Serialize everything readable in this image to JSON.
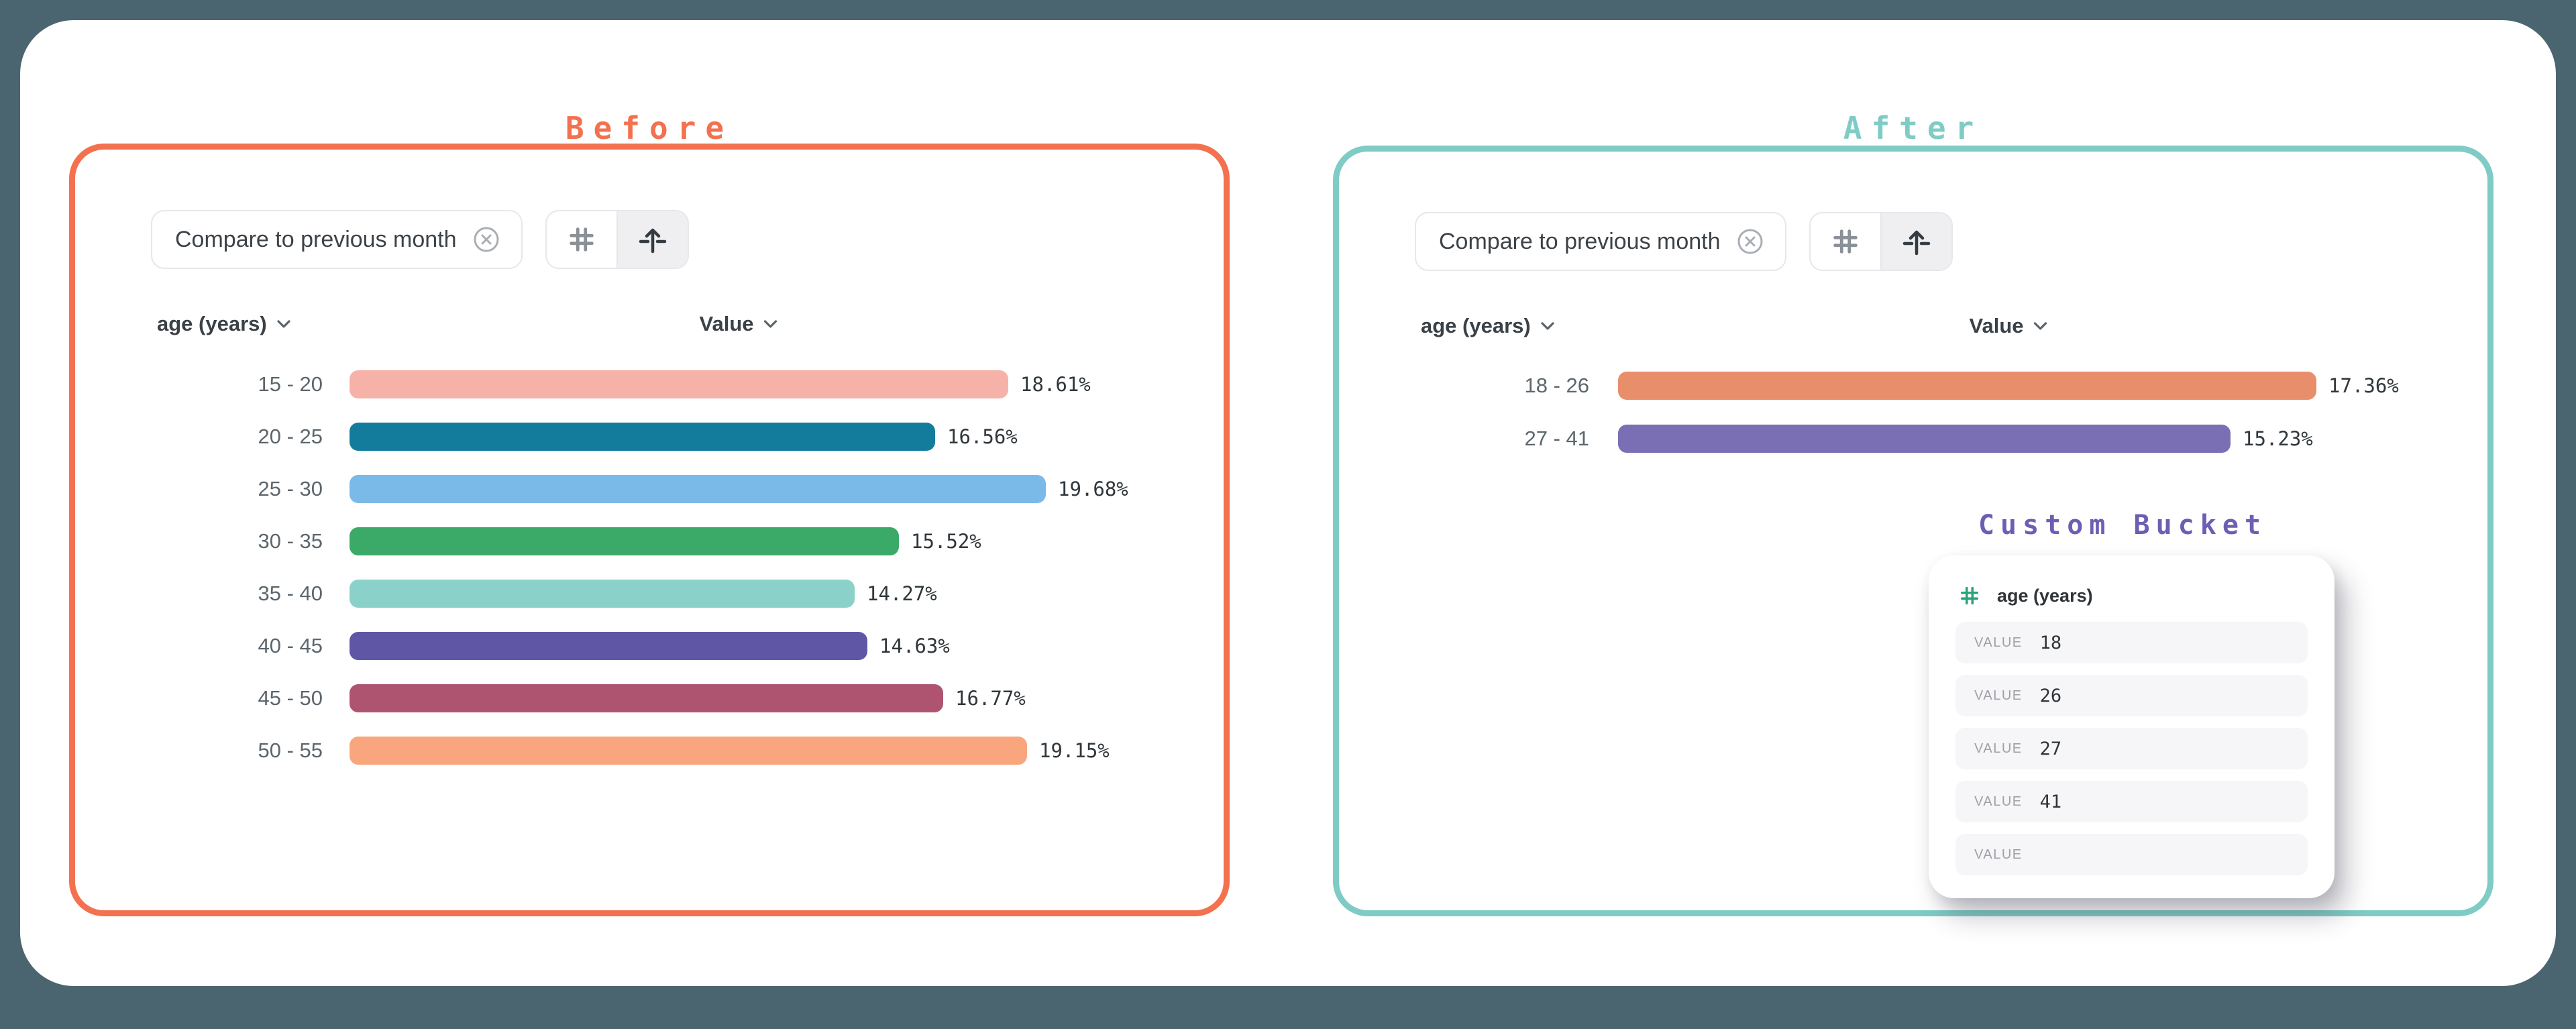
{
  "page": {
    "background_color": "#4A6570",
    "card_color": "#FFFFFF"
  },
  "panels": {
    "before": {
      "title": "Before",
      "accent_color": "#F3714F",
      "toolbar": {
        "filter_chip_label": "Compare to previous month",
        "remove_icon": "circled-x-icon",
        "segmented_icons": [
          "hash-icon",
          "bucket-arrow-icon"
        ],
        "segmented_selected": "bucket-arrow"
      },
      "columns": {
        "dimension_label": "age (years)",
        "value_label": "Value"
      }
    },
    "after": {
      "title": "After",
      "accent_color": "#7FCBC5",
      "toolbar": {
        "filter_chip_label": "Compare to previous month",
        "remove_icon": "circled-x-icon",
        "segmented_icons": [
          "hash-icon",
          "bucket-arrow-icon"
        ],
        "segmented_selected": "bucket-arrow"
      },
      "columns": {
        "dimension_label": "age (years)",
        "value_label": "Value"
      },
      "custom_bucket": {
        "title": "Custom Bucket",
        "title_color": "#6C5FB3",
        "field_icon": "hash-icon",
        "field_icon_color": "#2AA379",
        "field_label": "age (years)",
        "row_label": "VALUE",
        "values": [
          "18",
          "26",
          "27",
          "41",
          ""
        ]
      }
    }
  },
  "chart_data": [
    {
      "type": "bar",
      "orientation": "horizontal",
      "panel": "Before",
      "categories": [
        "15 - 20",
        "20 - 25",
        "25 - 30",
        "30 - 35",
        "35 - 40",
        "40 - 45",
        "45 - 50",
        "50 - 55"
      ],
      "values": [
        18.61,
        16.56,
        19.68,
        15.52,
        14.27,
        14.63,
        16.77,
        19.15
      ],
      "value_suffix": "%",
      "colors": [
        "#F6B2A8",
        "#137C9D",
        "#7ABAE8",
        "#3BA968",
        "#8AD2C9",
        "#5F57A6",
        "#AF5470",
        "#F9A67E"
      ],
      "textured_last_bar": true,
      "xlabel": "Value",
      "ylabel": "age (years)",
      "xlim": [
        0,
        19.68
      ],
      "grid": false,
      "legend": false
    },
    {
      "type": "bar",
      "orientation": "horizontal",
      "panel": "After",
      "categories": [
        "18 - 26",
        "27 - 41"
      ],
      "values": [
        17.36,
        15.23
      ],
      "value_suffix": "%",
      "colors": [
        "#E88E6B",
        "#7A6FB4"
      ],
      "xlabel": "Value",
      "ylabel": "age (years)",
      "xlim": [
        0,
        17.36
      ],
      "grid": false,
      "legend": false
    }
  ]
}
